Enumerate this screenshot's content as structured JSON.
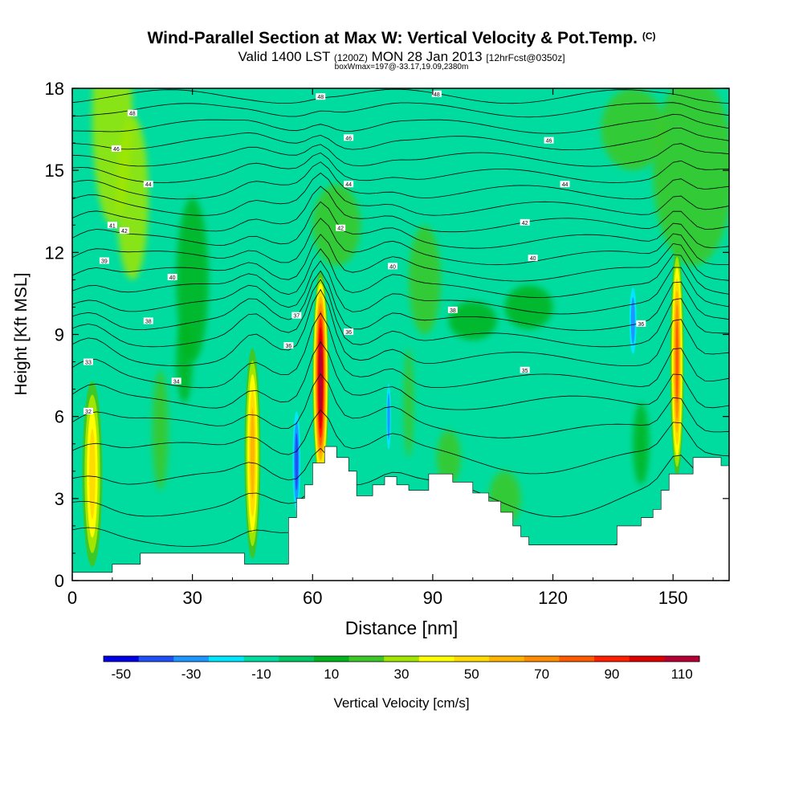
{
  "chart_data": {
    "type": "heatmap",
    "title": "Wind-Parallel Section at Max W: Vertical Velocity & Pot.Temp.",
    "title_mark": "(C)",
    "subtitle_main": "Valid 1400 LST",
    "subtitle_z": "(1200Z)",
    "subtitle_date": "MON 28 Jan 2013",
    "subtitle_fcst": "[12hrFcst@0350z]",
    "info": "boxWmax=197@-33.17,19.09,2380m",
    "xlabel": "Distance [nm]",
    "ylabel": "Height [Kft MSL]",
    "xlim": [
      0,
      164
    ],
    "ylim": [
      0,
      18
    ],
    "xticks": [
      "0",
      "30",
      "60",
      "90",
      "120",
      "150"
    ],
    "yticks": [
      "0",
      "3",
      "6",
      "9",
      "12",
      "15",
      "18"
    ],
    "colorbar": {
      "label": "Vertical Velocity [cm/s]",
      "tick_labels": [
        "-50",
        "-30",
        "-10",
        "10",
        "30",
        "50",
        "70",
        "90",
        "110"
      ],
      "colors": [
        "#0000e6",
        "#1e50f5",
        "#1e96ff",
        "#00e6ff",
        "#00dca0",
        "#00c864",
        "#00b41e",
        "#3cc828",
        "#a0e600",
        "#ffff00",
        "#ffdc00",
        "#ffb400",
        "#ff8c00",
        "#ff5a00",
        "#ff1e00",
        "#dc0000",
        "#b40032"
      ]
    },
    "terrain_kft": [
      [
        0,
        0.3
      ],
      [
        10,
        0.3
      ],
      [
        10,
        0.6
      ],
      [
        17,
        0.6
      ],
      [
        17,
        1
      ],
      [
        43,
        1
      ],
      [
        43,
        0.6
      ],
      [
        54,
        0.6
      ],
      [
        54,
        2.3
      ],
      [
        56,
        2.3
      ],
      [
        56,
        3
      ],
      [
        58,
        3
      ],
      [
        58,
        3.5
      ],
      [
        60,
        3.5
      ],
      [
        60,
        4.3
      ],
      [
        63,
        4.3
      ],
      [
        63,
        4.9
      ],
      [
        66,
        4.9
      ],
      [
        66,
        4.5
      ],
      [
        69,
        4.5
      ],
      [
        69,
        4
      ],
      [
        71,
        4
      ],
      [
        71,
        3.1
      ],
      [
        75,
        3.1
      ],
      [
        75,
        3.5
      ],
      [
        78,
        3.5
      ],
      [
        78,
        3.8
      ],
      [
        81,
        3.8
      ],
      [
        81,
        3.5
      ],
      [
        84,
        3.5
      ],
      [
        84,
        3.3
      ],
      [
        89,
        3.3
      ],
      [
        89,
        3.9
      ],
      [
        95,
        3.9
      ],
      [
        95,
        3.6
      ],
      [
        100,
        3.6
      ],
      [
        100,
        3.2
      ],
      [
        104,
        3.2
      ],
      [
        104,
        2.9
      ],
      [
        107,
        2.9
      ],
      [
        107,
        2.5
      ],
      [
        110,
        2.5
      ],
      [
        110,
        2
      ],
      [
        112,
        2
      ],
      [
        112,
        1.6
      ],
      [
        114,
        1.6
      ],
      [
        114,
        1.3
      ],
      [
        136,
        1.3
      ],
      [
        136,
        2
      ],
      [
        142,
        2
      ],
      [
        142,
        2.3
      ],
      [
        145,
        2.3
      ],
      [
        145,
        2.6
      ],
      [
        147,
        2.6
      ],
      [
        147,
        3.3
      ],
      [
        149,
        3.3
      ],
      [
        149,
        3.9
      ],
      [
        155,
        3.9
      ],
      [
        155,
        4.5
      ],
      [
        162,
        4.5
      ],
      [
        162,
        4.2
      ],
      [
        164,
        4.2
      ]
    ],
    "theta_contours": [
      {
        "label": "32",
        "pos": [
          4,
          6.2
        ]
      },
      {
        "label": "33",
        "pos": [
          4,
          8
        ]
      },
      {
        "label": "34",
        "pos": [
          26,
          7.3
        ]
      },
      {
        "label": "35",
        "pos": [
          113,
          7.7
        ]
      },
      {
        "label": "36",
        "pos": [
          54,
          8.6
        ]
      },
      {
        "label": "36",
        "pos": [
          69,
          9.1
        ]
      },
      {
        "label": "36",
        "pos": [
          142,
          9.4
        ]
      },
      {
        "label": "37",
        "pos": [
          56,
          9.7
        ]
      },
      {
        "label": "38",
        "pos": [
          19,
          9.5
        ]
      },
      {
        "label": "38",
        "pos": [
          95,
          9.9
        ]
      },
      {
        "label": "39",
        "pos": [
          8,
          11.7
        ]
      },
      {
        "label": "40",
        "pos": [
          25,
          11.1
        ]
      },
      {
        "label": "40",
        "pos": [
          80,
          11.5
        ]
      },
      {
        "label": "40",
        "pos": [
          115,
          11.8
        ]
      },
      {
        "label": "41",
        "pos": [
          10,
          13
        ]
      },
      {
        "label": "42",
        "pos": [
          13,
          12.8
        ]
      },
      {
        "label": "42",
        "pos": [
          67,
          12.9
        ]
      },
      {
        "label": "42",
        "pos": [
          113,
          13.1
        ]
      },
      {
        "label": "44",
        "pos": [
          19,
          14.5
        ]
      },
      {
        "label": "44",
        "pos": [
          69,
          14.5
        ]
      },
      {
        "label": "44",
        "pos": [
          123,
          14.5
        ]
      },
      {
        "label": "46",
        "pos": [
          11,
          15.8
        ]
      },
      {
        "label": "46",
        "pos": [
          69,
          16.2
        ]
      },
      {
        "label": "46",
        "pos": [
          119,
          16.1
        ]
      },
      {
        "label": "48",
        "pos": [
          15,
          17.1
        ]
      },
      {
        "label": "48",
        "pos": [
          62,
          17.7
        ]
      },
      {
        "label": "48",
        "pos": [
          91,
          17.8
        ]
      }
    ],
    "w_features": [
      {
        "x": 62,
        "ymin": 3.5,
        "ymax": 11.3,
        "w": 4,
        "peak": 110
      },
      {
        "x": 151,
        "ymin": 3.8,
        "ymax": 12.2,
        "w": 3.4,
        "peak": 75
      },
      {
        "x": 45,
        "ymin": 0.8,
        "ymax": 8.5,
        "w": 4,
        "peak": 50
      },
      {
        "x": 5,
        "ymin": 0.5,
        "ymax": 7.3,
        "w": 5,
        "peak": 40
      },
      {
        "x": 56,
        "ymin": 2.2,
        "ymax": 6.5,
        "w": 2.5,
        "peak": -45
      },
      {
        "x": 140,
        "ymin": 8,
        "ymax": 11,
        "w": 2.5,
        "peak": -35
      },
      {
        "x": 79,
        "ymin": 4.5,
        "ymax": 7.5,
        "w": 1.6,
        "peak": -35
      }
    ]
  }
}
